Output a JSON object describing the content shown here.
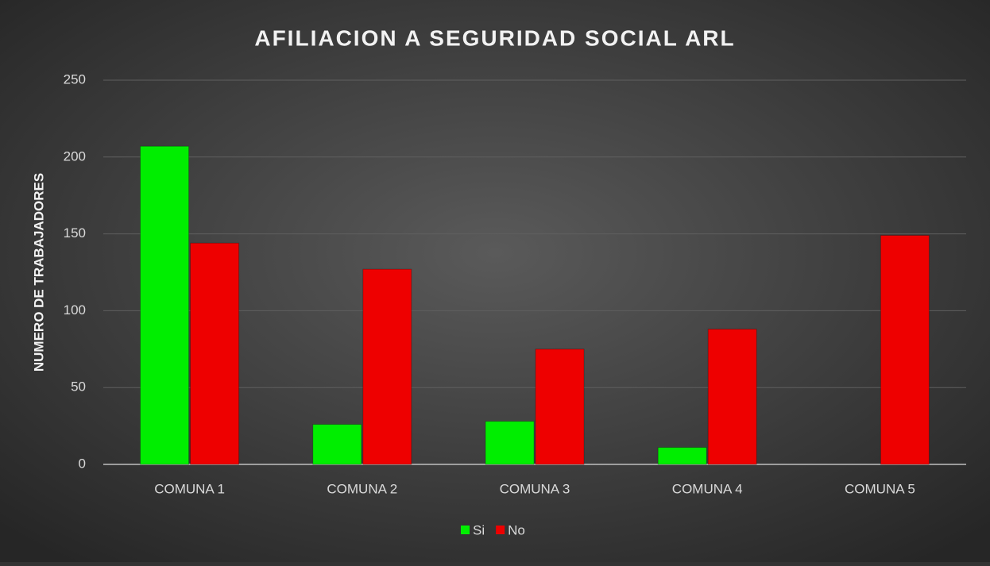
{
  "chart_data": {
    "type": "bar",
    "title": "AFILIACION A SEGURIDAD SOCIAL ARL",
    "y_label": "NUMERO DE TRABAJADORES",
    "categories": [
      "COMUNA 1",
      "COMUNA 2",
      "COMUNA 3",
      "COMUNA 4",
      "COMUNA 5"
    ],
    "series": [
      {
        "name": "Si",
        "color": "#00ee00",
        "values": [
          207,
          26,
          28,
          11,
          0
        ]
      },
      {
        "name": "No",
        "color": "#ee0000",
        "values": [
          144,
          127,
          75,
          88,
          149
        ]
      }
    ],
    "ylim": [
      0,
      250
    ],
    "yticks": [
      0,
      50,
      100,
      150,
      200,
      250
    ],
    "grid": true,
    "legend": "bottom"
  }
}
